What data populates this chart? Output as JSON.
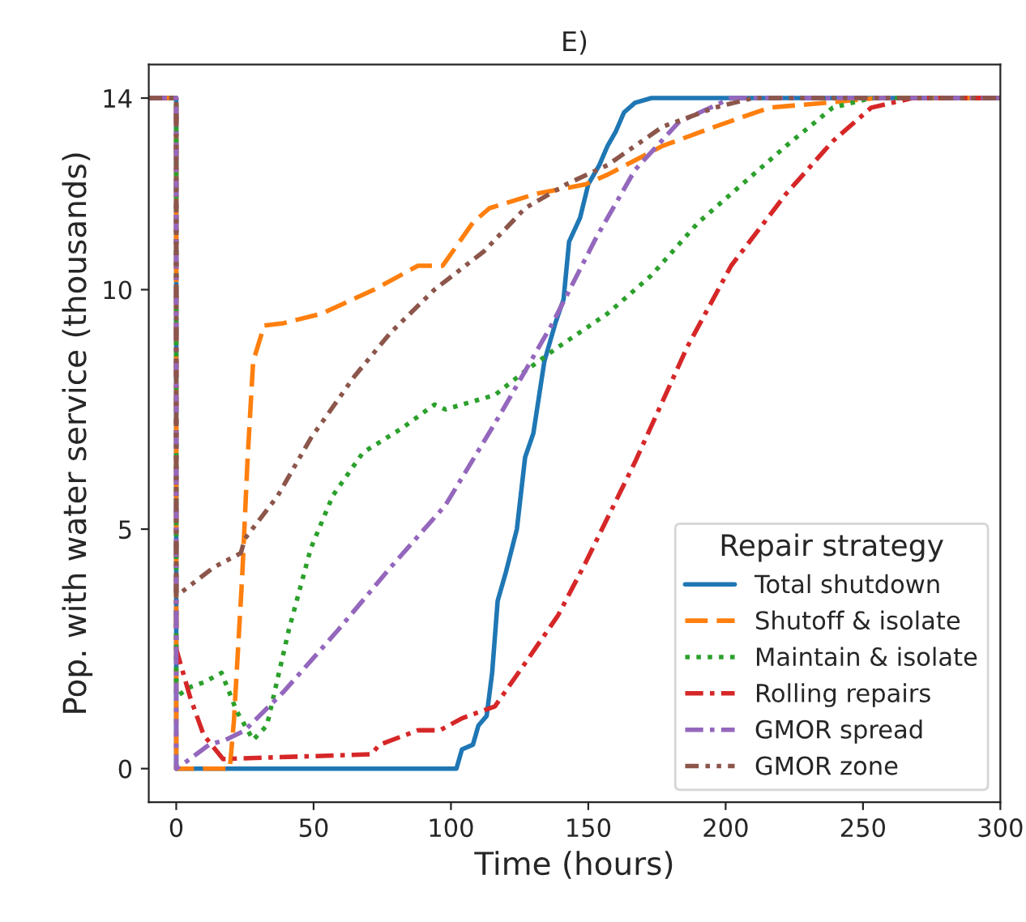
{
  "chart_data": {
    "type": "line",
    "title": "E)",
    "xlabel": "Time (hours)",
    "ylabel": "Pop. with water service (thousands)",
    "legend_title": "Repair strategy",
    "legend": "bottom right",
    "grid": false,
    "xlim": [
      -10,
      300
    ],
    "ylim": [
      -0.7,
      14.7
    ],
    "xticks": [
      0,
      50,
      100,
      150,
      200,
      250,
      300
    ],
    "yticks": [
      0,
      5,
      10,
      14
    ],
    "series": [
      {
        "name": "Total shutdown",
        "color": "#1f77b4",
        "line_style": "solid",
        "x": [
          -10,
          0,
          0,
          102,
          104,
          108,
          110,
          113,
          115,
          117,
          120,
          124,
          127,
          130,
          134,
          138,
          141,
          143,
          147,
          150,
          154,
          157,
          160,
          163,
          167,
          173,
          300
        ],
        "values": [
          14,
          14,
          0,
          0,
          0.4,
          0.5,
          0.9,
          1.1,
          2,
          3.5,
          4.1,
          5,
          6.5,
          7,
          8.5,
          9.3,
          9.8,
          11,
          11.5,
          12.2,
          12.6,
          13,
          13.3,
          13.7,
          13.9,
          14,
          14
        ]
      },
      {
        "name": "Shutoff & isolate",
        "color": "#ff7f0e",
        "line_style": "dashed",
        "x": [
          -10,
          0,
          0,
          19.5,
          21,
          24,
          26,
          28,
          32,
          39,
          53,
          72,
          88,
          97,
          108,
          114,
          131,
          149,
          157,
          177,
          196,
          216,
          236,
          255,
          300
        ],
        "values": [
          14,
          14,
          0,
          0,
          1,
          4,
          6.5,
          8.5,
          9.25,
          9.3,
          9.5,
          10,
          10.5,
          10.5,
          11.4,
          11.7,
          12,
          12.2,
          12.4,
          13,
          13.4,
          13.8,
          13.9,
          14,
          14
        ]
      },
      {
        "name": "Maintain & isolate",
        "color": "#2ca02c",
        "line_style": "dotted",
        "x": [
          -10,
          0,
          0,
          5,
          10,
          16.5,
          22,
          28,
          33,
          41,
          49,
          57,
          68,
          82,
          94,
          98,
          116,
          127,
          139,
          157,
          173,
          190,
          206,
          222,
          239,
          253,
          300
        ],
        "values": [
          14,
          14,
          1.5,
          1.7,
          1.8,
          2,
          1.2,
          0.6,
          0.9,
          2.9,
          4.6,
          5.7,
          6.6,
          7.1,
          7.6,
          7.5,
          7.8,
          8.3,
          8.8,
          9.5,
          10.3,
          11.4,
          12.2,
          13,
          13.8,
          14,
          14
        ]
      },
      {
        "name": "Rolling repairs",
        "color": "#d62728",
        "line_style": "dashdot",
        "x": [
          -10,
          0,
          0,
          5,
          10,
          17,
          71,
          74,
          88,
          96,
          104,
          116,
          127,
          139,
          149,
          167,
          186,
          202,
          222,
          239,
          253,
          268,
          300
        ],
        "values": [
          14,
          14,
          2.5,
          1.5,
          0.7,
          0.2,
          0.3,
          0.5,
          0.8,
          0.8,
          1.05,
          1.3,
          2.2,
          3.2,
          4.3,
          6.4,
          8.8,
          10.5,
          12,
          13.1,
          13.8,
          14,
          14
        ]
      },
      {
        "name": "GMOR spread",
        "color": "#9467bd",
        "line_style": "dashdot",
        "x": [
          -10,
          0,
          0,
          5,
          12,
          18,
          25,
          39,
          59,
          78,
          98,
          118,
          137,
          153,
          167,
          183,
          202,
          300
        ],
        "values": [
          14,
          14,
          0,
          0.2,
          0.5,
          0.6,
          0.8,
          1.6,
          2.9,
          4.2,
          5.5,
          7.4,
          9.3,
          11.1,
          12.5,
          13.5,
          14,
          14
        ]
      },
      {
        "name": "GMOR zone",
        "color": "#8c564b",
        "line_style": "dashdotdot",
        "x": [
          -10,
          0,
          0,
          13.6,
          23.5,
          25,
          37,
          49,
          65,
          78,
          94,
          112,
          127,
          142,
          157,
          177,
          196,
          210,
          300
        ],
        "values": [
          14,
          14,
          3.6,
          4.2,
          4.5,
          4.8,
          5.7,
          6.9,
          8.2,
          9.1,
          10,
          10.8,
          11.7,
          12.2,
          12.6,
          13.4,
          13.8,
          14,
          14
        ]
      }
    ]
  }
}
